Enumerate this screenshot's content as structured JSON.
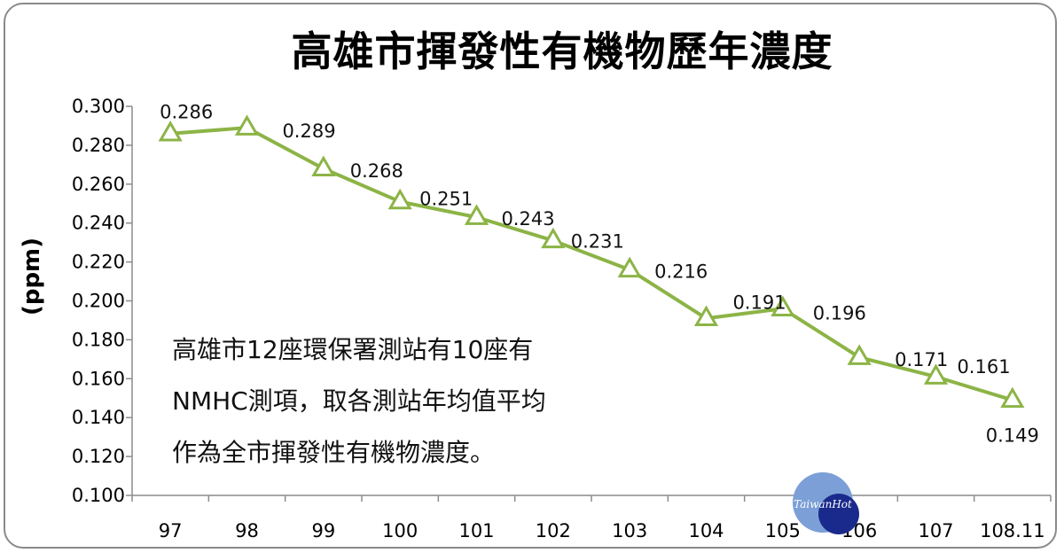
{
  "chart_data": {
    "type": "line",
    "title": "高雄市揮發性有機物歷年濃度",
    "ylabel": "(ppm)",
    "xlabel": "",
    "categories": [
      "97",
      "98",
      "99",
      "100",
      "101",
      "102",
      "103",
      "104",
      "105",
      "106",
      "107",
      "108.11"
    ],
    "series": [
      {
        "values": [
          0.286,
          0.289,
          0.268,
          0.251,
          0.243,
          0.231,
          0.216,
          0.191,
          0.196,
          0.171,
          0.161,
          0.149
        ],
        "labels": [
          "0.286",
          "0.289",
          "0.268",
          "0.251",
          "0.243",
          "0.231",
          "0.216",
          "0.191",
          "0.196",
          "0.171",
          "0.161",
          "0.149"
        ],
        "color": "#8cb446",
        "marker": "triangle-open"
      }
    ],
    "ylim": [
      0.1,
      0.3
    ],
    "yticks": [
      "0.300",
      "0.280",
      "0.260",
      "0.240",
      "0.220",
      "0.200",
      "0.180",
      "0.160",
      "0.140",
      "0.120",
      "0.100"
    ],
    "grid": false,
    "legend": "none"
  },
  "annotation": {
    "lines": [
      "高雄市12座環保署測站有10座有",
      "NMHC測項，取各測站年均值平均",
      "作為全市揮發性有機物濃度。"
    ]
  },
  "watermark": {
    "text": "TaiwanHot",
    "colors": [
      "#7b9fd6",
      "#1a2a8c"
    ]
  }
}
